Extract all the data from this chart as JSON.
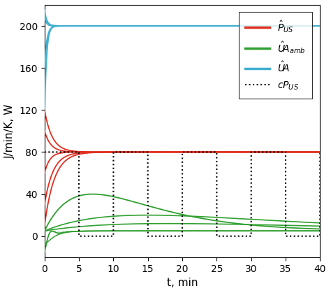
{
  "title": "",
  "xlabel": "t, min",
  "ylabel": "J/min/K, W",
  "xlim": [
    0,
    40
  ],
  "ylim": [
    -20,
    220
  ],
  "yticks": [
    0,
    40,
    80,
    120,
    160,
    200
  ],
  "xticks": [
    0,
    5,
    10,
    15,
    20,
    25,
    30,
    35,
    40
  ],
  "true_P_US": 80,
  "true_UA_amb": 5,
  "true_UA": 200,
  "cP_US_level": 80,
  "bg_color": "#ffffff",
  "red_color": "#e03020",
  "green_color": "#30a030",
  "blue_color": "#40b0d0",
  "black_color": "#000000",
  "legend_fontsize": 10,
  "axis_fontsize": 11,
  "tick_fontsize": 10
}
